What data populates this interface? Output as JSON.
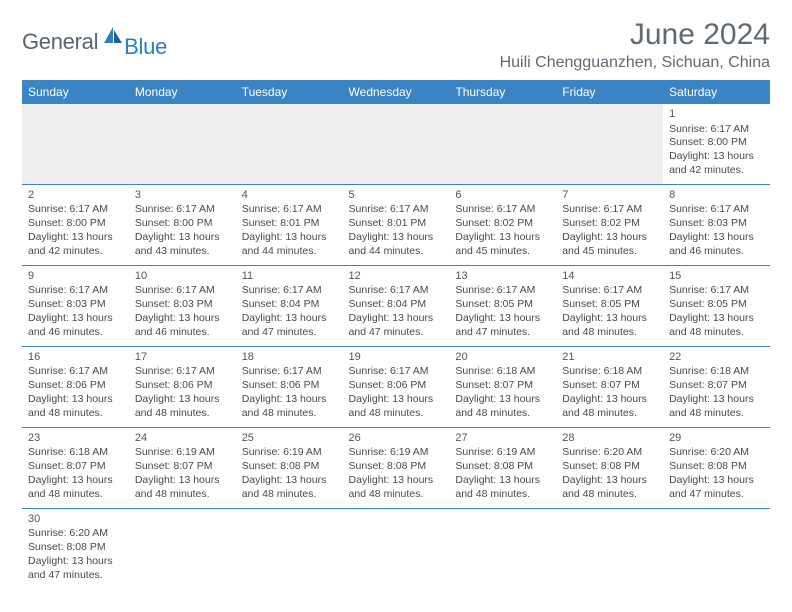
{
  "brand": {
    "text_general": "General",
    "text_blue": "Blue",
    "icon_fill": "#2a7fbf",
    "text_general_color": "#5a6570",
    "text_blue_color": "#2a7fbf"
  },
  "header": {
    "month_title": "June 2024",
    "location": "Huili Chengguanzhen, Sichuan, China"
  },
  "colors": {
    "header_bg": "#3b84c4",
    "header_text": "#ffffff",
    "border": "#3b84c4",
    "body_text": "#4a4a4a",
    "empty_bg": "#eeeeee"
  },
  "typography": {
    "title_fontsize": 30,
    "location_fontsize": 16,
    "dayheader_fontsize": 12,
    "cell_fontsize": 10.5
  },
  "day_headers": [
    "Sunday",
    "Monday",
    "Tuesday",
    "Wednesday",
    "Thursday",
    "Friday",
    "Saturday"
  ],
  "weeks": [
    [
      null,
      null,
      null,
      null,
      null,
      null,
      {
        "n": "1",
        "sr": "Sunrise: 6:17 AM",
        "ss": "Sunset: 8:00 PM",
        "d1": "Daylight: 13 hours",
        "d2": "and 42 minutes."
      }
    ],
    [
      {
        "n": "2",
        "sr": "Sunrise: 6:17 AM",
        "ss": "Sunset: 8:00 PM",
        "d1": "Daylight: 13 hours",
        "d2": "and 42 minutes."
      },
      {
        "n": "3",
        "sr": "Sunrise: 6:17 AM",
        "ss": "Sunset: 8:00 PM",
        "d1": "Daylight: 13 hours",
        "d2": "and 43 minutes."
      },
      {
        "n": "4",
        "sr": "Sunrise: 6:17 AM",
        "ss": "Sunset: 8:01 PM",
        "d1": "Daylight: 13 hours",
        "d2": "and 44 minutes."
      },
      {
        "n": "5",
        "sr": "Sunrise: 6:17 AM",
        "ss": "Sunset: 8:01 PM",
        "d1": "Daylight: 13 hours",
        "d2": "and 44 minutes."
      },
      {
        "n": "6",
        "sr": "Sunrise: 6:17 AM",
        "ss": "Sunset: 8:02 PM",
        "d1": "Daylight: 13 hours",
        "d2": "and 45 minutes."
      },
      {
        "n": "7",
        "sr": "Sunrise: 6:17 AM",
        "ss": "Sunset: 8:02 PM",
        "d1": "Daylight: 13 hours",
        "d2": "and 45 minutes."
      },
      {
        "n": "8",
        "sr": "Sunrise: 6:17 AM",
        "ss": "Sunset: 8:03 PM",
        "d1": "Daylight: 13 hours",
        "d2": "and 46 minutes."
      }
    ],
    [
      {
        "n": "9",
        "sr": "Sunrise: 6:17 AM",
        "ss": "Sunset: 8:03 PM",
        "d1": "Daylight: 13 hours",
        "d2": "and 46 minutes."
      },
      {
        "n": "10",
        "sr": "Sunrise: 6:17 AM",
        "ss": "Sunset: 8:03 PM",
        "d1": "Daylight: 13 hours",
        "d2": "and 46 minutes."
      },
      {
        "n": "11",
        "sr": "Sunrise: 6:17 AM",
        "ss": "Sunset: 8:04 PM",
        "d1": "Daylight: 13 hours",
        "d2": "and 47 minutes."
      },
      {
        "n": "12",
        "sr": "Sunrise: 6:17 AM",
        "ss": "Sunset: 8:04 PM",
        "d1": "Daylight: 13 hours",
        "d2": "and 47 minutes."
      },
      {
        "n": "13",
        "sr": "Sunrise: 6:17 AM",
        "ss": "Sunset: 8:05 PM",
        "d1": "Daylight: 13 hours",
        "d2": "and 47 minutes."
      },
      {
        "n": "14",
        "sr": "Sunrise: 6:17 AM",
        "ss": "Sunset: 8:05 PM",
        "d1": "Daylight: 13 hours",
        "d2": "and 48 minutes."
      },
      {
        "n": "15",
        "sr": "Sunrise: 6:17 AM",
        "ss": "Sunset: 8:05 PM",
        "d1": "Daylight: 13 hours",
        "d2": "and 48 minutes."
      }
    ],
    [
      {
        "n": "16",
        "sr": "Sunrise: 6:17 AM",
        "ss": "Sunset: 8:06 PM",
        "d1": "Daylight: 13 hours",
        "d2": "and 48 minutes."
      },
      {
        "n": "17",
        "sr": "Sunrise: 6:17 AM",
        "ss": "Sunset: 8:06 PM",
        "d1": "Daylight: 13 hours",
        "d2": "and 48 minutes."
      },
      {
        "n": "18",
        "sr": "Sunrise: 6:17 AM",
        "ss": "Sunset: 8:06 PM",
        "d1": "Daylight: 13 hours",
        "d2": "and 48 minutes."
      },
      {
        "n": "19",
        "sr": "Sunrise: 6:17 AM",
        "ss": "Sunset: 8:06 PM",
        "d1": "Daylight: 13 hours",
        "d2": "and 48 minutes."
      },
      {
        "n": "20",
        "sr": "Sunrise: 6:18 AM",
        "ss": "Sunset: 8:07 PM",
        "d1": "Daylight: 13 hours",
        "d2": "and 48 minutes."
      },
      {
        "n": "21",
        "sr": "Sunrise: 6:18 AM",
        "ss": "Sunset: 8:07 PM",
        "d1": "Daylight: 13 hours",
        "d2": "and 48 minutes."
      },
      {
        "n": "22",
        "sr": "Sunrise: 6:18 AM",
        "ss": "Sunset: 8:07 PM",
        "d1": "Daylight: 13 hours",
        "d2": "and 48 minutes."
      }
    ],
    [
      {
        "n": "23",
        "sr": "Sunrise: 6:18 AM",
        "ss": "Sunset: 8:07 PM",
        "d1": "Daylight: 13 hours",
        "d2": "and 48 minutes."
      },
      {
        "n": "24",
        "sr": "Sunrise: 6:19 AM",
        "ss": "Sunset: 8:07 PM",
        "d1": "Daylight: 13 hours",
        "d2": "and 48 minutes."
      },
      {
        "n": "25",
        "sr": "Sunrise: 6:19 AM",
        "ss": "Sunset: 8:08 PM",
        "d1": "Daylight: 13 hours",
        "d2": "and 48 minutes."
      },
      {
        "n": "26",
        "sr": "Sunrise: 6:19 AM",
        "ss": "Sunset: 8:08 PM",
        "d1": "Daylight: 13 hours",
        "d2": "and 48 minutes."
      },
      {
        "n": "27",
        "sr": "Sunrise: 6:19 AM",
        "ss": "Sunset: 8:08 PM",
        "d1": "Daylight: 13 hours",
        "d2": "and 48 minutes."
      },
      {
        "n": "28",
        "sr": "Sunrise: 6:20 AM",
        "ss": "Sunset: 8:08 PM",
        "d1": "Daylight: 13 hours",
        "d2": "and 48 minutes."
      },
      {
        "n": "29",
        "sr": "Sunrise: 6:20 AM",
        "ss": "Sunset: 8:08 PM",
        "d1": "Daylight: 13 hours",
        "d2": "and 47 minutes."
      }
    ],
    [
      {
        "n": "30",
        "sr": "Sunrise: 6:20 AM",
        "ss": "Sunset: 8:08 PM",
        "d1": "Daylight: 13 hours",
        "d2": "and 47 minutes."
      },
      null,
      null,
      null,
      null,
      null,
      null
    ]
  ]
}
